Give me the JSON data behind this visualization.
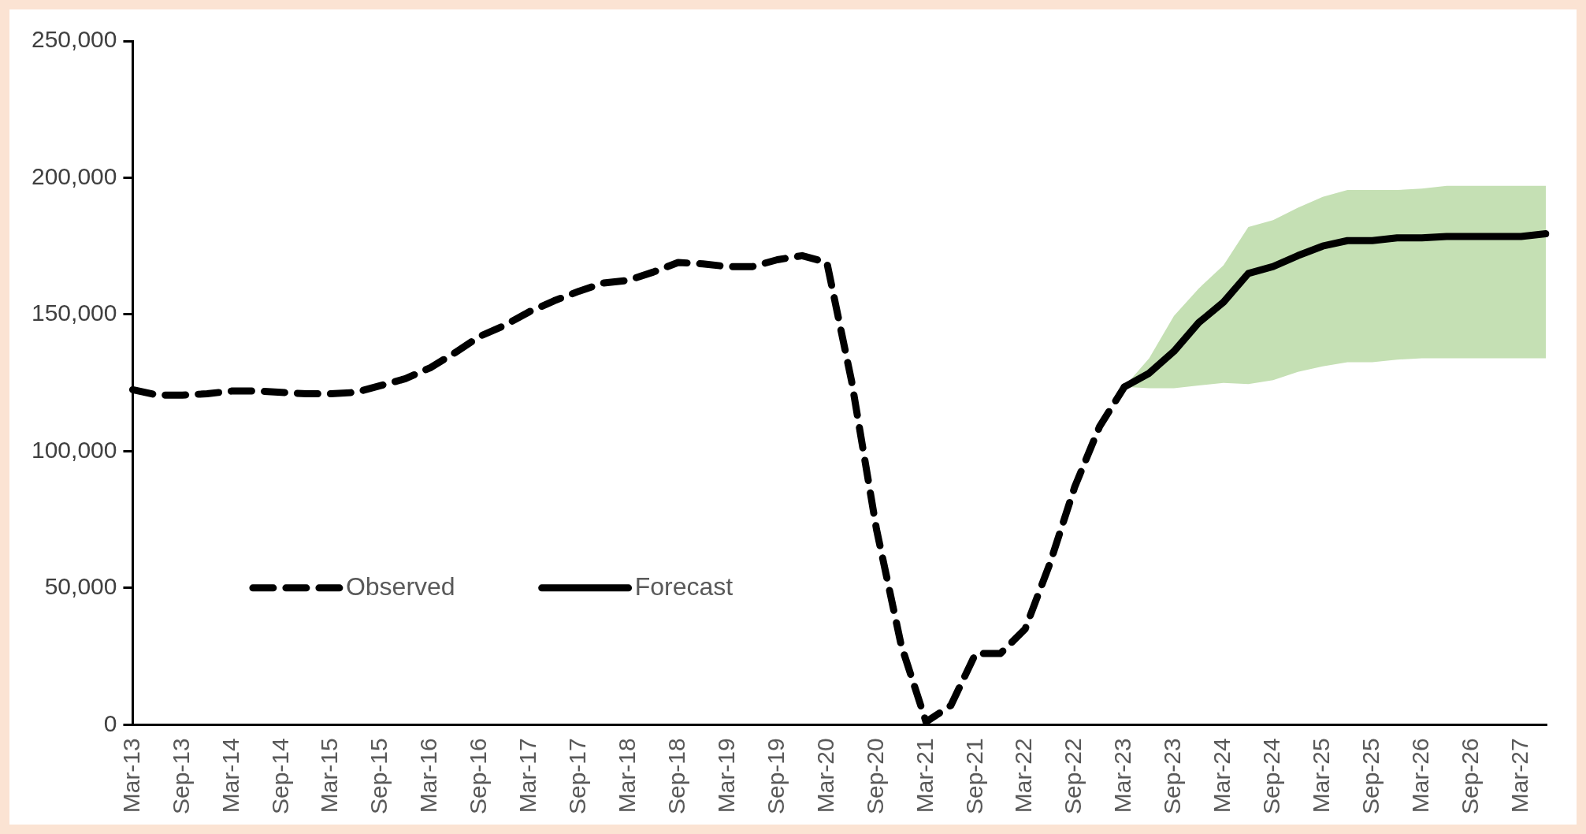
{
  "chart_data": {
    "type": "line",
    "categories": [
      "Mar-13",
      null,
      "Sep-13",
      null,
      "Mar-14",
      null,
      "Sep-14",
      null,
      "Mar-15",
      null,
      "Sep-15",
      null,
      "Mar-16",
      null,
      "Sep-16",
      null,
      "Mar-17",
      null,
      "Sep-17",
      null,
      "Mar-18",
      null,
      "Sep-18",
      null,
      "Mar-19",
      null,
      "Sep-19",
      null,
      "Mar-20",
      null,
      "Sep-20",
      null,
      "Mar-21",
      null,
      "Sep-21",
      null,
      "Mar-22",
      null,
      "Sep-22",
      null,
      "Mar-23",
      null,
      "Sep-23",
      null,
      "Mar-24",
      null,
      "Sep-24",
      null,
      "Mar-25",
      null,
      "Sep-25",
      null,
      "Mar-26",
      null,
      "Sep-26",
      null,
      "Mar-27",
      null
    ],
    "series": [
      {
        "name": "Observed",
        "color": "#000000",
        "line_style": "dashed",
        "values": [
          122500,
          120500,
          120500,
          121000,
          122000,
          122000,
          121500,
          121000,
          121000,
          121500,
          124000,
          126500,
          130500,
          136000,
          142000,
          146000,
          151000,
          155000,
          158500,
          161500,
          162500,
          165500,
          169000,
          168500,
          167500,
          167500,
          170000,
          171500,
          169000,
          125500,
          71500,
          29000,
          1000,
          7000,
          26000,
          26000,
          35000,
          59000,
          87000,
          109000,
          123500,
          null,
          null,
          null,
          null,
          null,
          null,
          null,
          null,
          null,
          null,
          null,
          null,
          null,
          null,
          null,
          null,
          null
        ]
      },
      {
        "name": "Forecast",
        "color": "#000000",
        "line_style": "solid",
        "values": [
          null,
          null,
          null,
          null,
          null,
          null,
          null,
          null,
          null,
          null,
          null,
          null,
          null,
          null,
          null,
          null,
          null,
          null,
          null,
          null,
          null,
          null,
          null,
          null,
          null,
          null,
          null,
          null,
          null,
          null,
          null,
          null,
          null,
          null,
          null,
          null,
          null,
          null,
          null,
          null,
          123500,
          128500,
          136500,
          147000,
          154500,
          165000,
          167500,
          171500,
          175000,
          177000,
          177000,
          178000,
          178000,
          178500,
          178500,
          178500,
          178500,
          179500
        ],
        "lower": [
          null,
          null,
          null,
          null,
          null,
          null,
          null,
          null,
          null,
          null,
          null,
          null,
          null,
          null,
          null,
          null,
          null,
          null,
          null,
          null,
          null,
          null,
          null,
          null,
          null,
          null,
          null,
          null,
          null,
          null,
          null,
          null,
          null,
          null,
          null,
          null,
          null,
          null,
          null,
          null,
          123500,
          123000,
          123000,
          124000,
          125000,
          124500,
          126000,
          129000,
          131000,
          132500,
          132500,
          133500,
          134000,
          134000,
          134000,
          134000,
          134000,
          134000
        ],
        "upper": [
          null,
          null,
          null,
          null,
          null,
          null,
          null,
          null,
          null,
          null,
          null,
          null,
          null,
          null,
          null,
          null,
          null,
          null,
          null,
          null,
          null,
          null,
          null,
          null,
          null,
          null,
          null,
          null,
          null,
          null,
          null,
          null,
          null,
          null,
          null,
          null,
          null,
          null,
          null,
          null,
          123500,
          134000,
          149500,
          159500,
          168000,
          182000,
          184500,
          189000,
          193000,
          195500,
          195500,
          195500,
          196000,
          197000,
          197000,
          197000,
          197000,
          197000
        ]
      }
    ],
    "ylim": [
      0,
      250000
    ],
    "yticks": [
      {
        "value": 0,
        "label": "0"
      },
      {
        "value": 50000,
        "label": "50,000"
      },
      {
        "value": 100000,
        "label": "100,000"
      },
      {
        "value": 150000,
        "label": "150,000"
      },
      {
        "value": 200000,
        "label": "200,000"
      },
      {
        "value": 250000,
        "label": "250,000"
      }
    ],
    "marker": "none",
    "legend": "bottom left"
  }
}
